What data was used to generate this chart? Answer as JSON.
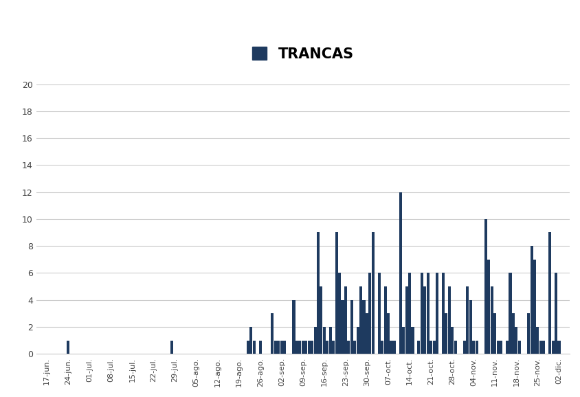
{
  "title": "TRANCAS",
  "bar_color": "#1e3a5f",
  "background_color": "#ffffff",
  "grid_color": "#cccccc",
  "ylim": [
    0,
    21
  ],
  "yticks": [
    0,
    2,
    4,
    6,
    8,
    10,
    12,
    14,
    16,
    18,
    20
  ],
  "categories": [
    "17-jun.",
    "24-jun.",
    "01-jul.",
    "08-jul.",
    "15-jul.",
    "22-jul.",
    "29-jul.",
    "05-ago.",
    "12-ago.",
    "19-ago.",
    "26-ago.",
    "02-sep.",
    "09-sep.",
    "16-sep.",
    "23-sep.",
    "30-sep.",
    "07-oct.",
    "14-oct.",
    "21-oct.",
    "28-oct.",
    "04-nov.",
    "11-nov.",
    "18-nov.",
    "25-nov.",
    "02-dic."
  ],
  "legend_label": "TRANCAS",
  "bar_groups": [
    {
      "week": 0,
      "days": []
    },
    {
      "week": 1,
      "days": [
        3
      ]
    },
    {
      "week": 2,
      "days": []
    },
    {
      "week": 3,
      "days": []
    },
    {
      "week": 4,
      "days": []
    },
    {
      "week": 5,
      "days": []
    },
    {
      "week": 6,
      "days": [
        2
      ]
    },
    {
      "week": 7,
      "days": []
    },
    {
      "week": 8,
      "days": []
    },
    {
      "week": 9,
      "days": [
        6
      ]
    },
    {
      "week": 10,
      "days": [
        0,
        1,
        3,
        5
      ]
    },
    {
      "week": 11,
      "days": [
        0,
        1,
        2,
        3,
        4,
        5
      ]
    },
    {
      "week": 12,
      "days": [
        0,
        1,
        2,
        3,
        4,
        5,
        6
      ]
    },
    {
      "week": 13,
      "days": [
        0,
        1,
        2,
        3,
        4,
        5,
        6
      ]
    },
    {
      "week": 14,
      "days": [
        0,
        1,
        2,
        3,
        4,
        5,
        6
      ]
    },
    {
      "week": 15,
      "days": [
        0,
        1,
        2,
        3,
        4,
        5,
        6
      ]
    },
    {
      "week": 16,
      "days": [
        0,
        1,
        2,
        3,
        4,
        5,
        6
      ]
    },
    {
      "week": 17,
      "days": [
        0,
        1,
        2,
        3,
        4,
        5,
        6
      ]
    },
    {
      "week": 18,
      "days": [
        0,
        1,
        2,
        3,
        4,
        5,
        6
      ]
    },
    {
      "week": 19,
      "days": [
        0,
        1,
        2,
        3,
        4,
        5,
        6
      ]
    },
    {
      "week": 20,
      "days": [
        0,
        1,
        2,
        3,
        4,
        5,
        6
      ]
    },
    {
      "week": 21,
      "days": [
        0,
        1,
        2,
        3,
        4,
        5,
        6
      ]
    },
    {
      "week": 22,
      "days": [
        0,
        1,
        2,
        3,
        4,
        5,
        6
      ]
    },
    {
      "week": 23,
      "days": [
        0,
        1,
        2,
        3,
        4,
        5,
        6
      ]
    },
    {
      "week": 24,
      "days": [
        0,
        1,
        2,
        3,
        4,
        5,
        6
      ]
    }
  ],
  "bar_values": {
    "1_3": 1,
    "6_2": 1,
    "9_6": 1,
    "10_0": 2,
    "10_1": 1,
    "10_3": 1,
    "10_5": 0,
    "11_0": 3,
    "11_1": 1,
    "11_2": 1,
    "11_3": 1,
    "11_4": 1,
    "11_5": 0,
    "12_0": 4,
    "12_1": 1,
    "12_2": 1,
    "12_3": 1,
    "12_4": 1,
    "12_5": 1,
    "12_6": 1,
    "13_0": 2,
    "13_1": 9,
    "13_2": 5,
    "13_3": 2,
    "13_4": 1,
    "13_5": 2,
    "13_6": 1,
    "14_0": 9,
    "14_1": 6,
    "14_2": 4,
    "14_3": 5,
    "14_4": 1,
    "14_5": 4,
    "14_6": 1,
    "15_0": 2,
    "15_1": 5,
    "15_2": 4,
    "15_3": 3,
    "15_4": 6,
    "15_5": 9,
    "15_6": 0,
    "16_0": 6,
    "16_1": 1,
    "16_2": 5,
    "16_3": 3,
    "16_4": 1,
    "16_5": 1,
    "16_6": 0,
    "17_0": 12,
    "17_1": 2,
    "17_2": 5,
    "17_3": 6,
    "17_4": 2,
    "17_5": 0,
    "17_6": 1,
    "18_0": 6,
    "18_1": 5,
    "18_2": 6,
    "18_3": 1,
    "18_4": 1,
    "18_5": 6,
    "18_6": 0,
    "19_0": 6,
    "19_1": 3,
    "19_2": 5,
    "19_3": 2,
    "19_4": 1,
    "19_5": 0,
    "19_6": 0,
    "20_0": 1,
    "20_1": 5,
    "20_2": 4,
    "20_3": 1,
    "20_4": 1,
    "20_5": 0,
    "20_6": 0,
    "21_0": 10,
    "21_1": 7,
    "21_2": 5,
    "21_3": 3,
    "21_4": 1,
    "21_5": 1,
    "21_6": 0,
    "22_0": 1,
    "22_1": 6,
    "22_2": 3,
    "22_3": 2,
    "22_4": 1,
    "22_5": 0,
    "22_6": 0,
    "23_0": 3,
    "23_1": 8,
    "23_2": 7,
    "23_3": 2,
    "23_4": 1,
    "23_5": 1,
    "23_6": 0,
    "24_0": 9,
    "24_1": 1,
    "24_2": 6,
    "24_3": 1,
    "24_4": 0,
    "24_5": 0,
    "24_6": 0
  }
}
